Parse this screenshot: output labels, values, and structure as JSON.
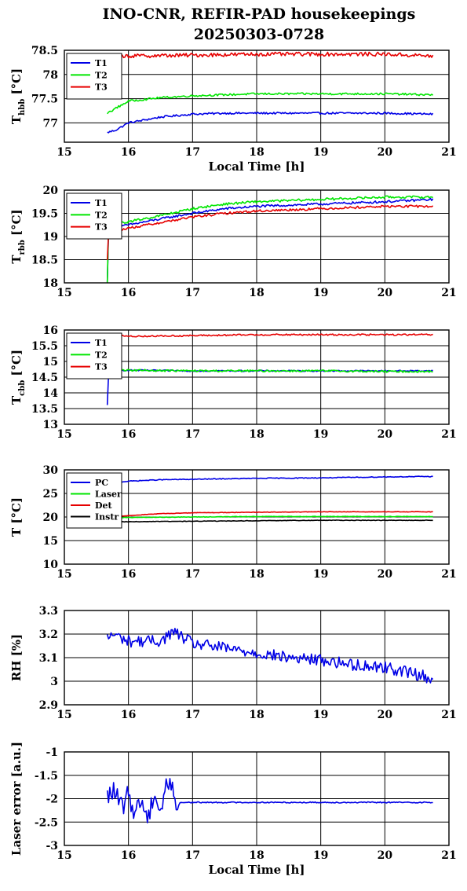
{
  "title_line1": "INO-CNR, REFIR-PAD housekeepings",
  "title_line2": "20250303-0728",
  "colors": {
    "blue": "#0000e6",
    "green": "#00e600",
    "red": "#e60000",
    "black": "#000000"
  },
  "chart_data": [
    {
      "type": "line",
      "ylabel_main": "T",
      "ylabel_sub": "hbb",
      "ylabel_unit": "[°C]",
      "xlabel": "Local Time [h]",
      "xlim": [
        15,
        21
      ],
      "ylim": [
        76.6,
        78.5
      ],
      "yticks": [
        77,
        77.5,
        78,
        78.5
      ],
      "ytick_labels": [
        "77",
        "77.5",
        "78",
        "78.5"
      ],
      "xticks": [
        15,
        16,
        17,
        18,
        19,
        20,
        21
      ],
      "xtick_labels": [
        "15",
        "16",
        "17",
        "18",
        "19",
        "20",
        "21"
      ],
      "grid": true,
      "legend": "top-left",
      "series": [
        {
          "name": "T1",
          "color": "blue",
          "x": [
            15.67,
            15.8,
            16.0,
            16.5,
            17.0,
            17.5,
            18.0,
            19.0,
            20.0,
            20.75
          ],
          "values": [
            76.8,
            76.85,
            77.0,
            77.12,
            77.18,
            77.2,
            77.2,
            77.2,
            77.2,
            77.18
          ],
          "noise": 0.02
        },
        {
          "name": "T2",
          "color": "green",
          "x": [
            15.67,
            15.8,
            16.0,
            16.5,
            17.0,
            17.5,
            18.0,
            19.0,
            20.0,
            20.75
          ],
          "values": [
            77.2,
            77.3,
            77.45,
            77.52,
            77.56,
            77.58,
            77.6,
            77.6,
            77.6,
            77.58
          ],
          "noise": 0.02
        },
        {
          "name": "T3",
          "color": "red",
          "x": [
            15.67,
            16.0,
            17.0,
            18.0,
            19.0,
            20.0,
            20.75
          ],
          "values": [
            78.4,
            78.38,
            78.4,
            78.42,
            78.42,
            78.42,
            78.38
          ],
          "noise": 0.04
        }
      ]
    },
    {
      "type": "line",
      "ylabel_main": "T",
      "ylabel_sub": "rbb",
      "ylabel_unit": "[°C]",
      "xlabel": "",
      "xlim": [
        15,
        21
      ],
      "ylim": [
        18,
        20
      ],
      "yticks": [
        18,
        18.5,
        19,
        19.5,
        20
      ],
      "ytick_labels": [
        "18",
        "18.5",
        "19",
        "19.5",
        "20"
      ],
      "xticks": [
        15,
        16,
        17,
        18,
        19,
        20,
        21
      ],
      "xtick_labels": [
        "15",
        "16",
        "17",
        "18",
        "19",
        "20",
        "21"
      ],
      "grid": true,
      "legend": "top-left",
      "series": [
        {
          "name": "T1",
          "color": "blue",
          "x": [
            15.67,
            15.68,
            15.75,
            16.0,
            16.5,
            17.0,
            17.5,
            18.0,
            19.0,
            20.0,
            20.75
          ],
          "values": [
            18.0,
            19.1,
            19.18,
            19.25,
            19.38,
            19.5,
            19.6,
            19.65,
            19.7,
            19.75,
            19.8
          ],
          "noise": 0.025
        },
        {
          "name": "T2",
          "color": "green",
          "x": [
            15.67,
            15.68,
            15.75,
            16.0,
            16.5,
            17.0,
            17.5,
            18.0,
            19.0,
            20.0,
            20.75
          ],
          "values": [
            18.0,
            19.2,
            19.25,
            19.32,
            19.45,
            19.6,
            19.7,
            19.75,
            19.8,
            19.85,
            19.85
          ],
          "noise": 0.025
        },
        {
          "name": "T3",
          "color": "red",
          "x": [
            15.67,
            15.68,
            15.75,
            16.0,
            16.5,
            17.0,
            17.5,
            18.0,
            19.0,
            20.0,
            20.75
          ],
          "values": [
            18.5,
            19.05,
            19.1,
            19.18,
            19.3,
            19.42,
            19.5,
            19.55,
            19.6,
            19.65,
            19.65
          ],
          "noise": 0.025
        }
      ]
    },
    {
      "type": "line",
      "ylabel_main": "T",
      "ylabel_sub": "cbb",
      "ylabel_unit": "[°C]",
      "xlabel": "",
      "xlim": [
        15,
        21
      ],
      "ylim": [
        13,
        16
      ],
      "yticks": [
        13,
        13.5,
        14,
        14.5,
        15,
        15.5,
        16
      ],
      "ytick_labels": [
        "13",
        "13.5",
        "14",
        "14.5",
        "15",
        "15.5",
        "16"
      ],
      "xticks": [
        15,
        16,
        17,
        18,
        19,
        20,
        21
      ],
      "xtick_labels": [
        "15",
        "16",
        "17",
        "18",
        "19",
        "20",
        "21"
      ],
      "grid": true,
      "legend": "top-left",
      "series": [
        {
          "name": "T1",
          "color": "blue",
          "x": [
            15.67,
            15.68,
            15.72,
            16.0,
            17.0,
            18.0,
            19.0,
            20.0,
            20.75
          ],
          "values": [
            13.6,
            14.5,
            14.72,
            14.72,
            14.7,
            14.7,
            14.7,
            14.7,
            14.7
          ],
          "noise": 0.02
        },
        {
          "name": "T2",
          "color": "green",
          "x": [
            15.67,
            15.72,
            16.0,
            17.0,
            18.0,
            19.0,
            20.0,
            20.75
          ],
          "values": [
            14.7,
            14.75,
            14.72,
            14.7,
            14.7,
            14.7,
            14.68,
            14.68
          ],
          "noise": 0.03
        },
        {
          "name": "T3",
          "color": "red",
          "x": [
            15.67,
            16.0,
            17.0,
            18.0,
            19.0,
            20.0,
            20.75
          ],
          "values": [
            15.85,
            15.8,
            15.82,
            15.85,
            15.85,
            15.85,
            15.85
          ],
          "noise": 0.025
        }
      ]
    },
    {
      "type": "line",
      "ylabel_main": "T [°C]",
      "ylabel_sub": "",
      "ylabel_unit": "",
      "xlabel": "",
      "xlim": [
        15,
        21
      ],
      "ylim": [
        10,
        30
      ],
      "yticks": [
        10,
        15,
        20,
        25,
        30
      ],
      "ytick_labels": [
        "10",
        "15",
        "20",
        "25",
        "30"
      ],
      "xticks": [
        15,
        16,
        17,
        18,
        19,
        20,
        21
      ],
      "xtick_labels": [
        "15",
        "16",
        "17",
        "18",
        "19",
        "20",
        "21"
      ],
      "grid": true,
      "legend": "top-left",
      "series": [
        {
          "name": "PC",
          "color": "blue",
          "x": [
            15.67,
            15.8,
            16.0,
            16.5,
            17.0,
            18.0,
            19.0,
            20.0,
            20.75
          ],
          "values": [
            27.0,
            27.3,
            27.6,
            27.9,
            28.0,
            28.2,
            28.3,
            28.5,
            28.6
          ],
          "noise": 0.08
        },
        {
          "name": "Laser",
          "color": "green",
          "x": [
            15.67,
            16.0,
            17.0,
            18.0,
            19.0,
            20.0,
            20.75
          ],
          "values": [
            19.8,
            19.9,
            20.0,
            20.1,
            20.1,
            20.1,
            20.1
          ],
          "noise": 0.05
        },
        {
          "name": "Det",
          "color": "red",
          "x": [
            15.67,
            16.0,
            16.5,
            17.0,
            18.0,
            19.0,
            20.0,
            20.75
          ],
          "values": [
            20.0,
            20.3,
            20.7,
            20.9,
            21.0,
            21.1,
            21.1,
            21.1
          ],
          "noise": 0.05
        },
        {
          "name": "Instr",
          "color": "black",
          "x": [
            15.67,
            16.0,
            17.0,
            18.0,
            19.0,
            20.0,
            20.75
          ],
          "values": [
            19.0,
            19.0,
            19.1,
            19.2,
            19.3,
            19.3,
            19.3
          ],
          "noise": 0.05
        }
      ]
    },
    {
      "type": "line",
      "ylabel_main": "RH [%]",
      "ylabel_sub": "",
      "ylabel_unit": "",
      "xlabel": "",
      "xlim": [
        15,
        21
      ],
      "ylim": [
        2.9,
        3.3
      ],
      "yticks": [
        2.9,
        3,
        3.1,
        3.2,
        3.3
      ],
      "ytick_labels": [
        "2.9",
        "3",
        "3.1",
        "3.2",
        "3.3"
      ],
      "xticks": [
        15,
        16,
        17,
        18,
        19,
        20,
        21
      ],
      "xtick_labels": [
        "15",
        "16",
        "17",
        "18",
        "19",
        "20",
        "21"
      ],
      "grid": true,
      "legend": "none",
      "series": [
        {
          "name": "",
          "color": "blue",
          "x": [
            15.67,
            15.75,
            16.0,
            16.5,
            16.7,
            17.0,
            17.5,
            18.0,
            18.5,
            19.0,
            19.5,
            20.0,
            20.5,
            20.75
          ],
          "values": [
            3.18,
            3.2,
            3.17,
            3.17,
            3.21,
            3.16,
            3.14,
            3.12,
            3.1,
            3.09,
            3.07,
            3.06,
            3.03,
            3.01
          ],
          "noise": 0.025
        }
      ]
    },
    {
      "type": "line",
      "ylabel_main": "Laser error [a.u.]",
      "ylabel_sub": "",
      "ylabel_unit": "",
      "xlabel": "Local Time [h]",
      "xlim": [
        15,
        21
      ],
      "ylim": [
        -3,
        -1
      ],
      "yticks": [
        -3,
        -2.5,
        -2,
        -1.5,
        -1
      ],
      "ytick_labels": [
        "-3",
        "-2.5",
        "-2",
        "-1.5",
        "-1"
      ],
      "xticks": [
        15,
        16,
        17,
        18,
        19,
        20,
        21
      ],
      "xtick_labels": [
        "15",
        "16",
        "17",
        "18",
        "19",
        "20",
        "21"
      ],
      "grid": true,
      "legend": "none",
      "series": [
        {
          "name": "",
          "color": "blue",
          "x": [
            15.67,
            15.75,
            15.9,
            16.0,
            16.1,
            16.2,
            16.3,
            16.4,
            16.5,
            16.6,
            16.7,
            16.75,
            16.8,
            17.0,
            18.0,
            19.0,
            20.0,
            20.75
          ],
          "values": [
            -2.0,
            -1.8,
            -2.2,
            -1.9,
            -2.3,
            -2.0,
            -2.45,
            -1.85,
            -2.3,
            -1.65,
            -1.7,
            -2.3,
            -2.08,
            -2.08,
            -2.08,
            -2.08,
            -2.08,
            -2.08
          ],
          "noise": 0.012,
          "jitter": [
            15.67,
            16.72,
            0.22
          ]
        }
      ]
    }
  ]
}
